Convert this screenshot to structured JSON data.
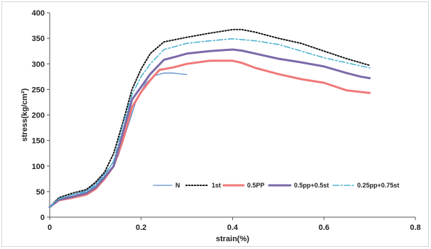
{
  "chart_data": {
    "type": "line",
    "xlabel": "strain(%)",
    "ylabel": "stress(kg/cm²)",
    "xlim": [
      0,
      0.8
    ],
    "ylim": [
      0,
      400
    ],
    "xticks": [
      0,
      0.2,
      0.4,
      0.6,
      0.8
    ],
    "yticks": [
      0,
      50,
      100,
      150,
      200,
      250,
      300,
      350,
      400
    ],
    "xtick_labels": [
      "0",
      "0.2",
      "0.4",
      "0.6",
      "0.8"
    ],
    "ytick_labels": [
      "0",
      "50",
      "100",
      "150",
      "200",
      "250",
      "300",
      "350",
      "400"
    ],
    "grid": false,
    "legend_position": "bottom-right",
    "series": [
      {
        "name": "N",
        "color": "#5b8fc9",
        "style": "thin-solid",
        "points": [
          [
            0,
            20
          ],
          [
            0.02,
            35
          ],
          [
            0.05,
            44
          ],
          [
            0.08,
            52
          ],
          [
            0.1,
            65
          ],
          [
            0.12,
            85
          ],
          [
            0.15,
            120
          ],
          [
            0.17,
            175
          ],
          [
            0.19,
            230
          ],
          [
            0.21,
            262
          ],
          [
            0.23,
            277
          ],
          [
            0.25,
            282
          ],
          [
            0.27,
            282
          ],
          [
            0.3,
            279
          ]
        ]
      },
      {
        "name": "1st",
        "color": "#111111",
        "style": "dotted",
        "points": [
          [
            0,
            20
          ],
          [
            0.02,
            38
          ],
          [
            0.05,
            47
          ],
          [
            0.08,
            54
          ],
          [
            0.1,
            68
          ],
          [
            0.12,
            88
          ],
          [
            0.14,
            125
          ],
          [
            0.16,
            185
          ],
          [
            0.18,
            250
          ],
          [
            0.2,
            290
          ],
          [
            0.22,
            320
          ],
          [
            0.25,
            343
          ],
          [
            0.3,
            352
          ],
          [
            0.35,
            360
          ],
          [
            0.4,
            367
          ],
          [
            0.42,
            367
          ],
          [
            0.45,
            362
          ],
          [
            0.5,
            350
          ],
          [
            0.55,
            340
          ],
          [
            0.6,
            325
          ],
          [
            0.65,
            310
          ],
          [
            0.7,
            297
          ]
        ]
      },
      {
        "name": "0.5PP",
        "color": "#f07878",
        "style": "thick-solid",
        "points": [
          [
            0,
            20
          ],
          [
            0.02,
            33
          ],
          [
            0.05,
            38
          ],
          [
            0.08,
            44
          ],
          [
            0.1,
            55
          ],
          [
            0.12,
            75
          ],
          [
            0.14,
            100
          ],
          [
            0.16,
            150
          ],
          [
            0.18,
            215
          ],
          [
            0.2,
            245
          ],
          [
            0.22,
            268
          ],
          [
            0.24,
            288
          ],
          [
            0.27,
            293
          ],
          [
            0.3,
            300
          ],
          [
            0.35,
            306
          ],
          [
            0.4,
            306
          ],
          [
            0.42,
            302
          ],
          [
            0.45,
            292
          ],
          [
            0.5,
            280
          ],
          [
            0.55,
            270
          ],
          [
            0.6,
            263
          ],
          [
            0.65,
            248
          ],
          [
            0.7,
            243
          ]
        ]
      },
      {
        "name": "0.5pp+0.5st",
        "color": "#7b6aa8",
        "style": "thick-solid",
        "points": [
          [
            0,
            20
          ],
          [
            0.02,
            34
          ],
          [
            0.05,
            40
          ],
          [
            0.08,
            47
          ],
          [
            0.1,
            58
          ],
          [
            0.12,
            78
          ],
          [
            0.14,
            100
          ],
          [
            0.16,
            165
          ],
          [
            0.18,
            230
          ],
          [
            0.2,
            255
          ],
          [
            0.22,
            280
          ],
          [
            0.25,
            308
          ],
          [
            0.28,
            315
          ],
          [
            0.3,
            320
          ],
          [
            0.35,
            325
          ],
          [
            0.4,
            328
          ],
          [
            0.42,
            326
          ],
          [
            0.45,
            320
          ],
          [
            0.5,
            310
          ],
          [
            0.55,
            303
          ],
          [
            0.6,
            295
          ],
          [
            0.65,
            282
          ],
          [
            0.68,
            275
          ],
          [
            0.7,
            272
          ]
        ]
      },
      {
        "name": "0.25pp+0.75st",
        "color": "#4fb3cf",
        "style": "dash-dot",
        "points": [
          [
            0,
            20
          ],
          [
            0.02,
            36
          ],
          [
            0.05,
            44
          ],
          [
            0.08,
            50
          ],
          [
            0.1,
            62
          ],
          [
            0.12,
            82
          ],
          [
            0.14,
            110
          ],
          [
            0.16,
            180
          ],
          [
            0.18,
            240
          ],
          [
            0.2,
            275
          ],
          [
            0.22,
            300
          ],
          [
            0.25,
            328
          ],
          [
            0.3,
            340
          ],
          [
            0.35,
            345
          ],
          [
            0.4,
            349
          ],
          [
            0.45,
            345
          ],
          [
            0.5,
            338
          ],
          [
            0.55,
            325
          ],
          [
            0.6,
            312
          ],
          [
            0.65,
            302
          ],
          [
            0.7,
            292
          ]
        ]
      }
    ]
  }
}
